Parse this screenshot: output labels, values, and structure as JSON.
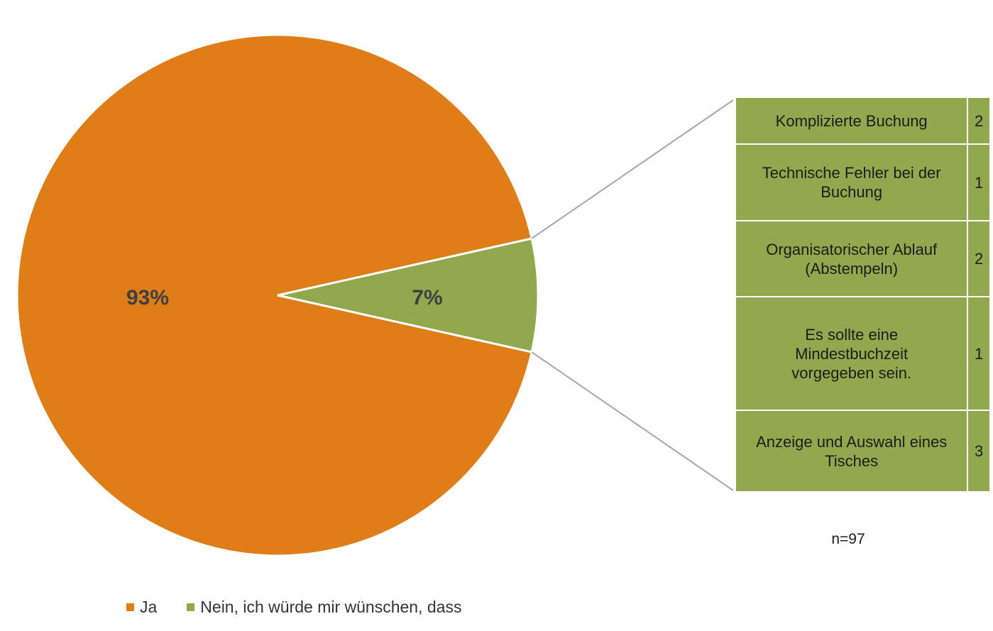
{
  "chart_data": {
    "type": "pie",
    "slices": [
      {
        "name": "Ja",
        "value": 93,
        "label": "93%",
        "color": "#df7e18"
      },
      {
        "name": "Nein, ich würde mir wünschen, dass",
        "value": 7,
        "label": "7%",
        "color": "#92a84f"
      }
    ],
    "legend_position": "bottom-left",
    "breakdown": {
      "of_slice": "Nein, ich würde mir wünschen, dass",
      "rows": [
        {
          "label": "Komplizierte Buchung",
          "count": "2"
        },
        {
          "label": "Technische Fehler bei der Buchung",
          "count": "1"
        },
        {
          "label": "Organisatorischer Ablauf (Abstempeln)",
          "count": "2"
        },
        {
          "label": "Es sollte eine Mindestbuchzeit vorgegeben sein.",
          "count": "1"
        },
        {
          "label": "Anzeige und Auswahl eines Tisches",
          "count": "3"
        }
      ]
    },
    "note": "n=97"
  }
}
